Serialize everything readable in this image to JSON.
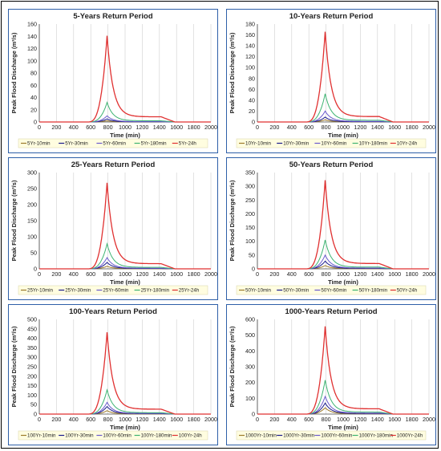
{
  "series_colors": [
    "#9c7a2a",
    "#1a1a8c",
    "#6a5acd",
    "#3cb371",
    "#e03030"
  ],
  "chart_data": [
    {
      "type": "line",
      "title": "5-Years Return Period",
      "xlabel": "Time (min)",
      "ylabel": "Peak Flood Discharge (m³/s)",
      "xlim": [
        0,
        2000
      ],
      "ylim": [
        0,
        160
      ],
      "xticks": [
        0,
        200,
        400,
        600,
        800,
        1000,
        1200,
        1400,
        1600,
        1800,
        2000
      ],
      "yticks": [
        0,
        20,
        40,
        60,
        80,
        100,
        120,
        140,
        160
      ],
      "grid": "vertical",
      "legend": "bottom",
      "series": [
        {
          "name": "5Yr-10min",
          "peak": 2
        },
        {
          "name": "5Yr-30min",
          "peak": 5
        },
        {
          "name": "5Yr-60min",
          "peak": 10
        },
        {
          "name": "5Yr-180min",
          "peak": 32
        },
        {
          "name": "5Yr-24h",
          "peak": 141
        }
      ]
    },
    {
      "type": "line",
      "title": "10-Years Return Period",
      "xlabel": "Time (min)",
      "ylabel": "Peak Flood Discharge (m³/s)",
      "xlim": [
        0,
        2000
      ],
      "ylim": [
        0,
        180
      ],
      "xticks": [
        0,
        200,
        400,
        600,
        800,
        1000,
        1200,
        1400,
        1600,
        1800,
        2000
      ],
      "yticks": [
        0,
        20,
        40,
        60,
        80,
        100,
        120,
        140,
        160,
        180
      ],
      "grid": "vertical",
      "legend": "bottom",
      "series": [
        {
          "name": "10Yr-10min",
          "peak": 4
        },
        {
          "name": "10Yr-30min",
          "peak": 9
        },
        {
          "name": "10Yr-60min",
          "peak": 20
        },
        {
          "name": "10Yr-180min",
          "peak": 52
        },
        {
          "name": "10Yr-24h",
          "peak": 166
        }
      ]
    },
    {
      "type": "line",
      "title": "25-Years Return Period",
      "xlabel": "Time (min)",
      "ylabel": "Peak Flood Discharge (m³/s)",
      "xlim": [
        0,
        2000
      ],
      "ylim": [
        0,
        300
      ],
      "xticks": [
        0,
        200,
        400,
        600,
        800,
        1000,
        1200,
        1400,
        1600,
        1800,
        2000
      ],
      "yticks": [
        0,
        50,
        100,
        150,
        200,
        250,
        300
      ],
      "grid": "vertical",
      "legend": "bottom",
      "series": [
        {
          "name": "25Yr-10min",
          "peak": 8
        },
        {
          "name": "25Yr-30min",
          "peak": 20
        },
        {
          "name": "25Yr-60min",
          "peak": 35
        },
        {
          "name": "25Yr-180min",
          "peak": 78
        },
        {
          "name": "25Yr-24h",
          "peak": 268
        }
      ]
    },
    {
      "type": "line",
      "title": "50-Years Return Period",
      "xlabel": "Time (min)",
      "ylabel": "Peak Flood Discharge (m³/s)",
      "xlim": [
        0,
        2000
      ],
      "ylim": [
        0,
        350
      ],
      "xticks": [
        0,
        200,
        400,
        600,
        800,
        1000,
        1200,
        1400,
        1600,
        1800,
        2000
      ],
      "yticks": [
        0,
        50,
        100,
        150,
        200,
        250,
        300,
        350
      ],
      "grid": "vertical",
      "legend": "bottom",
      "series": [
        {
          "name": "50Yr-10min",
          "peak": 12
        },
        {
          "name": "50Yr-30min",
          "peak": 28
        },
        {
          "name": "50Yr-60min",
          "peak": 50
        },
        {
          "name": "50Yr-180min",
          "peak": 105
        },
        {
          "name": "50Yr-24h",
          "peak": 322
        }
      ]
    },
    {
      "type": "line",
      "title": "100-Years Return Period",
      "xlabel": "Time (min)",
      "ylabel": "Peak Flood Discharge (m³/s)",
      "xlim": [
        0,
        2000
      ],
      "ylim": [
        0,
        500
      ],
      "xticks": [
        0,
        200,
        400,
        600,
        800,
        1000,
        1200,
        1400,
        1600,
        1800,
        2000
      ],
      "yticks": [
        0,
        50,
        100,
        150,
        200,
        250,
        300,
        350,
        400,
        450,
        500
      ],
      "grid": "vertical",
      "legend": "bottom",
      "series": [
        {
          "name": "100Yr-10min",
          "peak": 18
        },
        {
          "name": "100Yr-30min",
          "peak": 40
        },
        {
          "name": "100Yr-60min",
          "peak": 62
        },
        {
          "name": "100Yr-180min",
          "peak": 128
        },
        {
          "name": "100Yr-24h",
          "peak": 432
        }
      ]
    },
    {
      "type": "line",
      "title": "1000-Years Return Period",
      "xlabel": "Time (min)",
      "ylabel": "Peak Flood Discharge (m³/s)",
      "xlim": [
        0,
        2000
      ],
      "ylim": [
        0,
        600
      ],
      "xticks": [
        0,
        200,
        400,
        600,
        800,
        1000,
        1200,
        1400,
        1600,
        1800,
        2000
      ],
      "yticks": [
        0,
        100,
        200,
        300,
        400,
        500,
        600
      ],
      "grid": "vertical",
      "legend": "bottom",
      "series": [
        {
          "name": "1000Yr-10min",
          "peak": 40
        },
        {
          "name": "1000Yr-30min",
          "peak": 70
        },
        {
          "name": "1000Yr-60min",
          "peak": 112
        },
        {
          "name": "1000Yr-180min",
          "peak": 215
        },
        {
          "name": "1000Yr-24h",
          "peak": 556
        }
      ]
    }
  ]
}
